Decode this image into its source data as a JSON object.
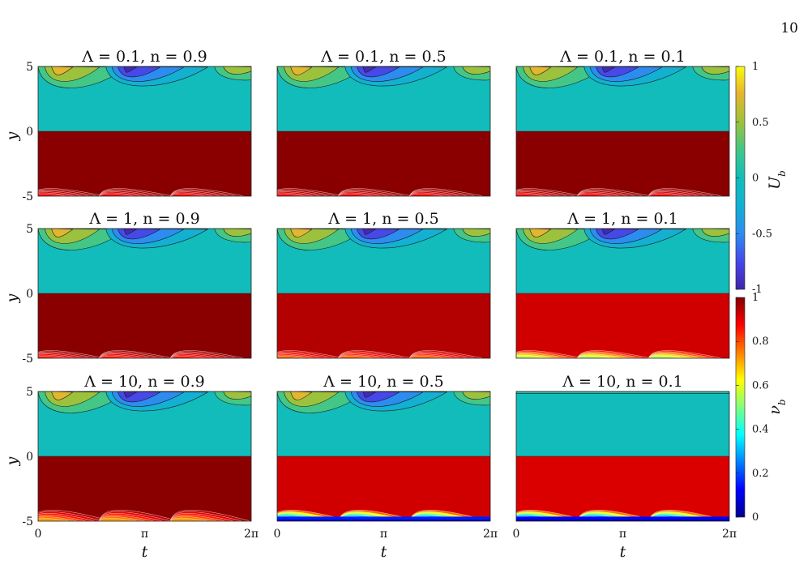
{
  "page_number": "10",
  "chart_data": {
    "type": "heatmap",
    "grid": {
      "rows": 3,
      "cols": 3
    },
    "panel_titles": [
      "Λ = 0.1, n = 0.9",
      "Λ = 0.1, n = 0.5",
      "Λ = 0.1, n = 0.1",
      "Λ = 1, n = 0.9",
      "Λ = 1, n = 0.5",
      "Λ = 1, n = 0.1",
      "Λ = 10, n = 0.9",
      "Λ = 10, n = 0.5",
      "Λ = 10, n = 0.1"
    ],
    "panels": [
      {
        "Lambda": 0.1,
        "n": 0.9,
        "nu_bulk": 0.99,
        "nu_min_wall": 0.88
      },
      {
        "Lambda": 0.1,
        "n": 0.5,
        "nu_bulk": 0.99,
        "nu_min_wall": 0.88
      },
      {
        "Lambda": 0.1,
        "n": 0.1,
        "nu_bulk": 0.99,
        "nu_min_wall": 0.88
      },
      {
        "Lambda": 1,
        "n": 0.9,
        "nu_bulk": 0.99,
        "nu_min_wall": 0.85
      },
      {
        "Lambda": 1,
        "n": 0.5,
        "nu_bulk": 0.95,
        "nu_min_wall": 0.78
      },
      {
        "Lambda": 1,
        "n": 0.1,
        "nu_bulk": 0.92,
        "nu_min_wall": 0.55
      },
      {
        "Lambda": 10,
        "n": 0.9,
        "nu_bulk": 0.99,
        "nu_min_wall": 0.72
      },
      {
        "Lambda": 10,
        "n": 0.5,
        "nu_bulk": 0.92,
        "nu_min_wall": 0.05
      },
      {
        "Lambda": 10,
        "n": 0.1,
        "nu_bulk": 0.91,
        "nu_min_wall": 0.02
      }
    ],
    "x_label": "t",
    "y_label": "y",
    "x_ticks": [
      "0",
      "π",
      "2π"
    ],
    "y_ticks": [
      "5",
      "0",
      "-5"
    ],
    "xlim": [
      0,
      6.283
    ],
    "ylim": [
      -5,
      5
    ],
    "upper_field": {
      "colorbar_label": "U_b",
      "colormap": "parula",
      "range": [
        -1,
        1
      ],
      "ticks": [
        "1",
        "0.5",
        "0",
        "-0.5",
        "-1"
      ],
      "tick_values": [
        1,
        0.5,
        0,
        -0.5,
        -1
      ]
    },
    "lower_field": {
      "colorbar_label": "ν_b",
      "colormap": "jet",
      "range": [
        0,
        1
      ],
      "ticks": [
        "1",
        "0.8",
        "0.6",
        "0.4",
        "0.2",
        "0"
      ],
      "tick_values": [
        1,
        0.8,
        0.6,
        0.4,
        0.2,
        0
      ]
    }
  }
}
